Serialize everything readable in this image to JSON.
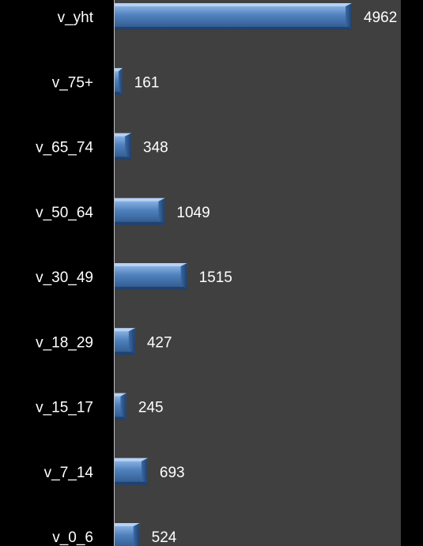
{
  "chart_data": {
    "type": "bar",
    "orientation": "horizontal",
    "categories": [
      "v_yht",
      "v_75+",
      "v_65_74",
      "v_50_64",
      "v_30_49",
      "v_18_29",
      "v_15_17",
      "v_7_14",
      "v_0_6"
    ],
    "values": [
      4962,
      161,
      348,
      1049,
      1515,
      427,
      245,
      693,
      524
    ],
    "xlim": [
      0,
      6000
    ],
    "grid": false,
    "legend": "none",
    "data_labels": true
  },
  "colors": {
    "page_background": "#000000",
    "plot_background": "#404040",
    "bar_top": "#9cc0ee",
    "bar_mid": "#4f81bd",
    "bar_bottom": "#2c5488",
    "axis_line": "#bfbfbf",
    "text": "#ffffff"
  }
}
